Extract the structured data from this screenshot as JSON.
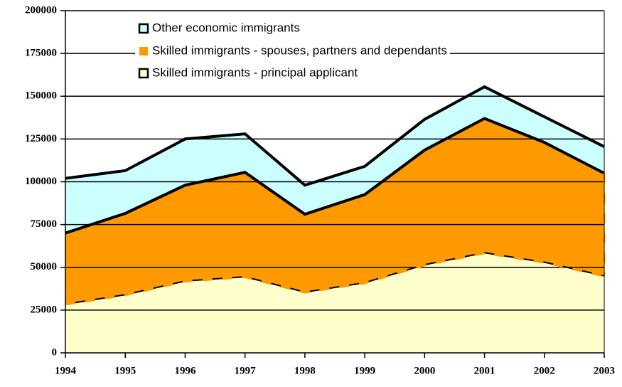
{
  "chart_data": {
    "type": "stacked-area",
    "categories": [
      "1994",
      "1995",
      "1996",
      "1997",
      "1998",
      "1999",
      "2000",
      "2001",
      "2002",
      "2003"
    ],
    "series": [
      {
        "name": "Skilled immigrants - principal applicant",
        "color": "#ffffcc",
        "values": [
          28500,
          34000,
          42000,
          44500,
          35500,
          41000,
          51500,
          58500,
          53000,
          45000
        ]
      },
      {
        "name": "Skilled immigrants - spouses, partners and dependants",
        "color": "#ff9900",
        "values": [
          41500,
          47500,
          56000,
          61000,
          45500,
          51500,
          67000,
          78500,
          70000,
          60000
        ]
      },
      {
        "name": "Other economic immigrants",
        "color": "#ccffff",
        "values": [
          32000,
          25000,
          27000,
          22500,
          17000,
          16500,
          18000,
          18500,
          15000,
          15500
        ]
      }
    ],
    "ylim": [
      0,
      200000
    ],
    "yticks": [
      0,
      25000,
      50000,
      75000,
      100000,
      125000,
      150000,
      175000,
      200000
    ],
    "grid": true
  }
}
